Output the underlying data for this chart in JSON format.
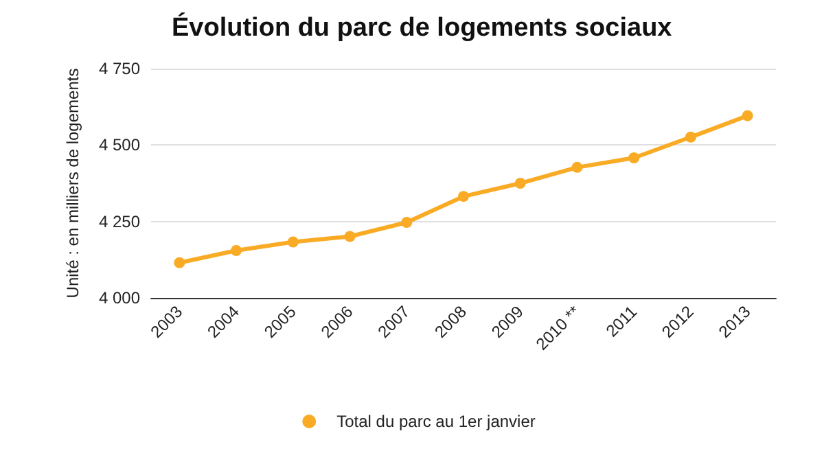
{
  "chart_data": {
    "type": "line",
    "title": "Évolution du parc de logements sociaux",
    "ylabel": "Unité : en milliers de logements",
    "categories": [
      "2003",
      "2004",
      "2005",
      "2006",
      "2007",
      "2008",
      "2009",
      "2010 **",
      "2011",
      "2012",
      "2013"
    ],
    "series": [
      {
        "name": "Total du parc au 1er janvier",
        "color": "#f9ab25",
        "values": [
          4115,
          4155,
          4183,
          4201,
          4247,
          4332,
          4375,
          4427,
          4458,
          4526,
          4596
        ]
      }
    ],
    "ylim": [
      4000,
      4750
    ],
    "yticks": [
      {
        "value": 4000,
        "label": "4 000"
      },
      {
        "value": 4250,
        "label": "4 250"
      },
      {
        "value": 4500,
        "label": "4 500"
      },
      {
        "value": 4750,
        "label": "4 750"
      }
    ],
    "grid": "y",
    "legend": "bottom",
    "marker": "circle",
    "line_style": "solid"
  }
}
